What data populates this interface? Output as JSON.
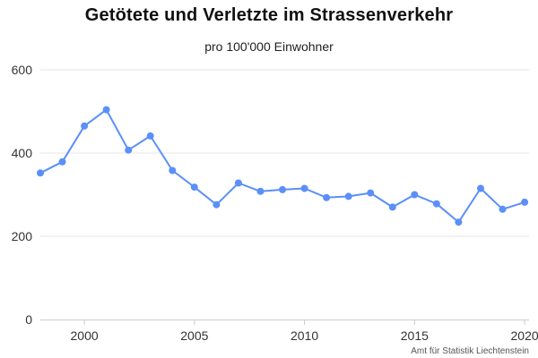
{
  "chart_data": {
    "type": "line",
    "title": "Getötete und Verletzte im Strassenverkehr",
    "subtitle": "pro 100'000 Einwohner",
    "xlabel": "",
    "ylabel": "",
    "xlim": [
      1998,
      2020.2
    ],
    "ylim": [
      0,
      600
    ],
    "x_ticks": [
      2000,
      2005,
      2010,
      2015,
      2020
    ],
    "y_ticks": [
      0,
      200,
      400,
      600
    ],
    "grid": true,
    "legend": "none",
    "colors": {
      "series": "#5b8ff9",
      "grid": "#e6e6e6",
      "axis": "#cccccc"
    },
    "series": [
      {
        "x": [
          1998,
          1999,
          2000,
          2001,
          2002,
          2003,
          2004,
          2005,
          2006,
          2007,
          2008,
          2009,
          2010,
          2011,
          2012,
          2013,
          2014,
          2015,
          2016,
          2017,
          2018,
          2019,
          2020
        ],
        "values": [
          352,
          379,
          465,
          504,
          407,
          441,
          358,
          318,
          276,
          328,
          308,
          312,
          315,
          293,
          296,
          304,
          270,
          300,
          278,
          234,
          315,
          265,
          282
        ]
      }
    ],
    "credit": "Amt für Statistik Liechtenstein"
  }
}
